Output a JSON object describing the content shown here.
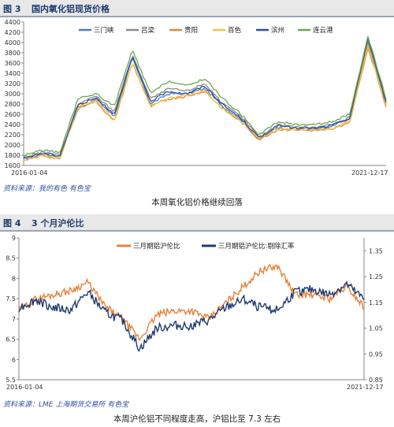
{
  "figure3": {
    "number": "图 3",
    "title": "国内氧化铝现货价格",
    "source": "资料来源：我的有色 有色宝",
    "caption": "本周氧化铝价格继续回落",
    "chart_data": {
      "type": "line",
      "title": "国内氧化铝现货价格",
      "xlabel": "",
      "ylabel": "",
      "x_tick_labels": [
        "2016-01-04",
        "2021-12-17"
      ],
      "ylim": [
        1600,
        4400
      ],
      "y_ticks": [
        1600,
        1800,
        2000,
        2200,
        2400,
        2600,
        2800,
        3000,
        3200,
        3400,
        3600,
        3800,
        4000,
        4200,
        4400
      ],
      "legend_position": "top",
      "grid": false,
      "x": [
        0,
        0.05,
        0.1,
        0.15,
        0.2,
        0.25,
        0.3,
        0.35,
        0.4,
        0.45,
        0.5,
        0.55,
        0.6,
        0.65,
        0.7,
        0.75,
        0.8,
        0.85,
        0.9,
        0.95,
        1.0
      ],
      "series": [
        {
          "name": "三门峡",
          "color": "#4a7fc1",
          "values": [
            1720,
            1820,
            1780,
            2700,
            2900,
            2550,
            3700,
            2800,
            3000,
            3000,
            3100,
            2750,
            2500,
            2100,
            2350,
            2300,
            2300,
            2350,
            2550,
            4050,
            2800
          ]
        },
        {
          "name": "吕梁",
          "color": "#8a8a8a",
          "values": [
            1760,
            1860,
            1800,
            2800,
            2950,
            2650,
            3750,
            2900,
            3100,
            3050,
            3200,
            2800,
            2550,
            2150,
            2400,
            2350,
            2350,
            2400,
            2500,
            4000,
            2850
          ]
        },
        {
          "name": "贵阳",
          "color": "#e8823a",
          "values": [
            1680,
            1800,
            1720,
            2750,
            2850,
            2450,
            3600,
            2750,
            2900,
            2950,
            3050,
            2700,
            2450,
            2100,
            2300,
            2300,
            2280,
            2300,
            2450,
            3900,
            2750
          ]
        },
        {
          "name": "百色",
          "color": "#f2c440",
          "values": [
            1700,
            1790,
            1740,
            2720,
            2870,
            2480,
            3620,
            2760,
            2920,
            2960,
            3060,
            2700,
            2460,
            2120,
            2310,
            2310,
            2290,
            2310,
            2460,
            3950,
            2780
          ]
        },
        {
          "name": "滨州",
          "color": "#2f4f9f",
          "values": [
            1740,
            1840,
            1790,
            2780,
            2920,
            2600,
            3720,
            2850,
            3050,
            3000,
            3150,
            2780,
            2520,
            2130,
            2380,
            2330,
            2320,
            2380,
            2520,
            4100,
            2820
          ]
        },
        {
          "name": "连云港",
          "color": "#6aa84f",
          "values": [
            1800,
            1900,
            1850,
            2900,
            3000,
            2750,
            3850,
            3000,
            3250,
            3150,
            3300,
            2900,
            2600,
            2200,
            2450,
            2400,
            2400,
            2450,
            2600,
            4120,
            2900
          ]
        }
      ]
    }
  },
  "figure4": {
    "number": "图 4",
    "title": "3 个月沪伦比",
    "source": "资料来源：LME 上海期货交易所 有色宝",
    "caption": "本周沪伦铝不同程度走高，沪铝比至 7.3 左右",
    "chart_data": {
      "type": "line",
      "title": "3 个月沪伦比",
      "xlabel": "",
      "ylabel": "",
      "x_tick_labels": [
        "2016-01-04",
        "2021-12-17"
      ],
      "ylim": [
        5.5,
        9
      ],
      "y_ticks": [
        5.5,
        6,
        6.5,
        7,
        7.5,
        8,
        8.5,
        9
      ],
      "y2lim": [
        0.85,
        1.4
      ],
      "y2_ticks": [
        0.85,
        0.95,
        1.05,
        1.15,
        1.25,
        1.35
      ],
      "legend_position": "top",
      "grid": false,
      "x": [
        0,
        0.05,
        0.1,
        0.15,
        0.2,
        0.25,
        0.3,
        0.35,
        0.4,
        0.45,
        0.5,
        0.55,
        0.6,
        0.65,
        0.7,
        0.75,
        0.8,
        0.85,
        0.9,
        0.95,
        1.0
      ],
      "series": [
        {
          "name": "三月期铝沪伦比",
          "color": "#e8823a",
          "axis": "left",
          "values": [
            7.2,
            7.5,
            7.6,
            7.7,
            7.9,
            7.3,
            7.0,
            6.5,
            7.1,
            7.2,
            7.2,
            7.0,
            7.4,
            7.8,
            8.2,
            8.3,
            7.6,
            7.6,
            7.5,
            7.8,
            7.3
          ]
        },
        {
          "name": "三月期铝沪伦比:剔除汇率",
          "color": "#1f3a6e",
          "axis": "right",
          "values": [
            1.13,
            1.16,
            1.13,
            1.12,
            1.19,
            1.11,
            1.08,
            0.97,
            1.05,
            1.06,
            1.06,
            1.08,
            1.13,
            1.16,
            1.13,
            1.12,
            1.19,
            1.2,
            1.18,
            1.22,
            1.16
          ]
        }
      ]
    }
  }
}
